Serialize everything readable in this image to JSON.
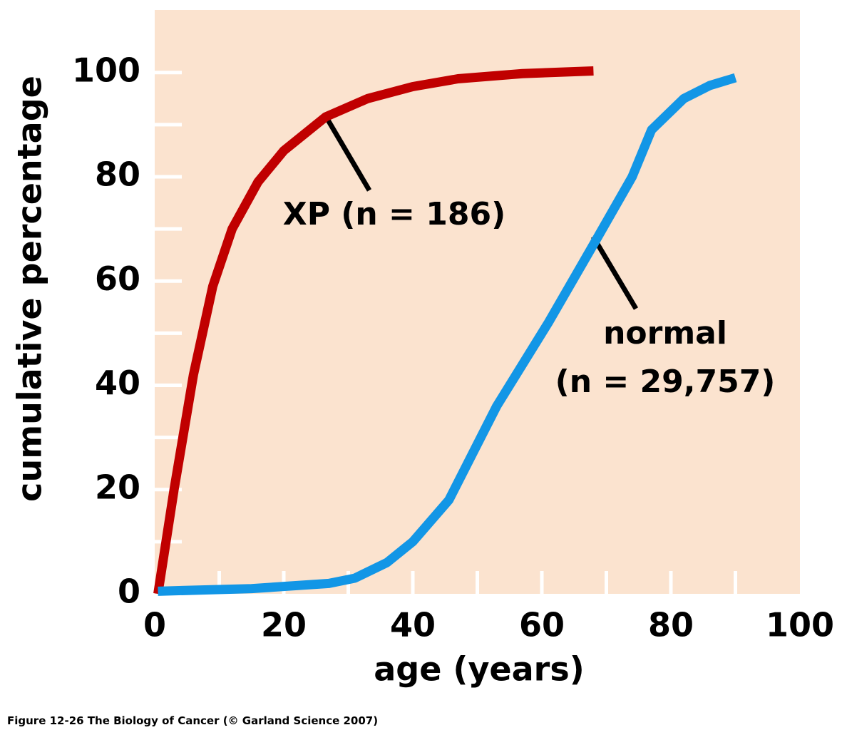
{
  "chart_data": {
    "type": "line",
    "xlabel": "age (years)",
    "ylabel": "cumulative percentage",
    "xlim": [
      0,
      100
    ],
    "ylim": [
      0,
      112
    ],
    "xticks": [
      0,
      20,
      40,
      60,
      80,
      100
    ],
    "yticks": [
      0,
      20,
      40,
      60,
      80,
      100
    ],
    "xminor": [
      10,
      30,
      50,
      70,
      90
    ],
    "yminor": [
      10,
      30,
      50,
      70,
      90
    ],
    "background": "#fbe3cf",
    "series": [
      {
        "name": "XP (n = 186)",
        "color": "#c00000",
        "x": [
          0.5,
          3,
          6,
          9,
          12,
          16,
          20,
          26.5,
          33,
          40,
          47,
          57,
          68
        ],
        "values": [
          0,
          20,
          42,
          59,
          70,
          79,
          85,
          91.5,
          95,
          97.3,
          98.8,
          99.8,
          100.3
        ]
      },
      {
        "name": "normal",
        "color": "#1296e6",
        "x": [
          0.5,
          15,
          27,
          31,
          36,
          40,
          45.6,
          53,
          61,
          68,
          74,
          77,
          82,
          86,
          90
        ],
        "values": [
          0.5,
          1,
          2,
          3,
          6,
          10,
          18,
          36,
          52,
          67,
          80,
          89,
          95,
          97.5,
          99
        ]
      }
    ],
    "annotations": [
      "(n = 29,757)"
    ],
    "caption": "Figure 12-26  The Biology of Cancer (© Garland Science 2007)"
  }
}
